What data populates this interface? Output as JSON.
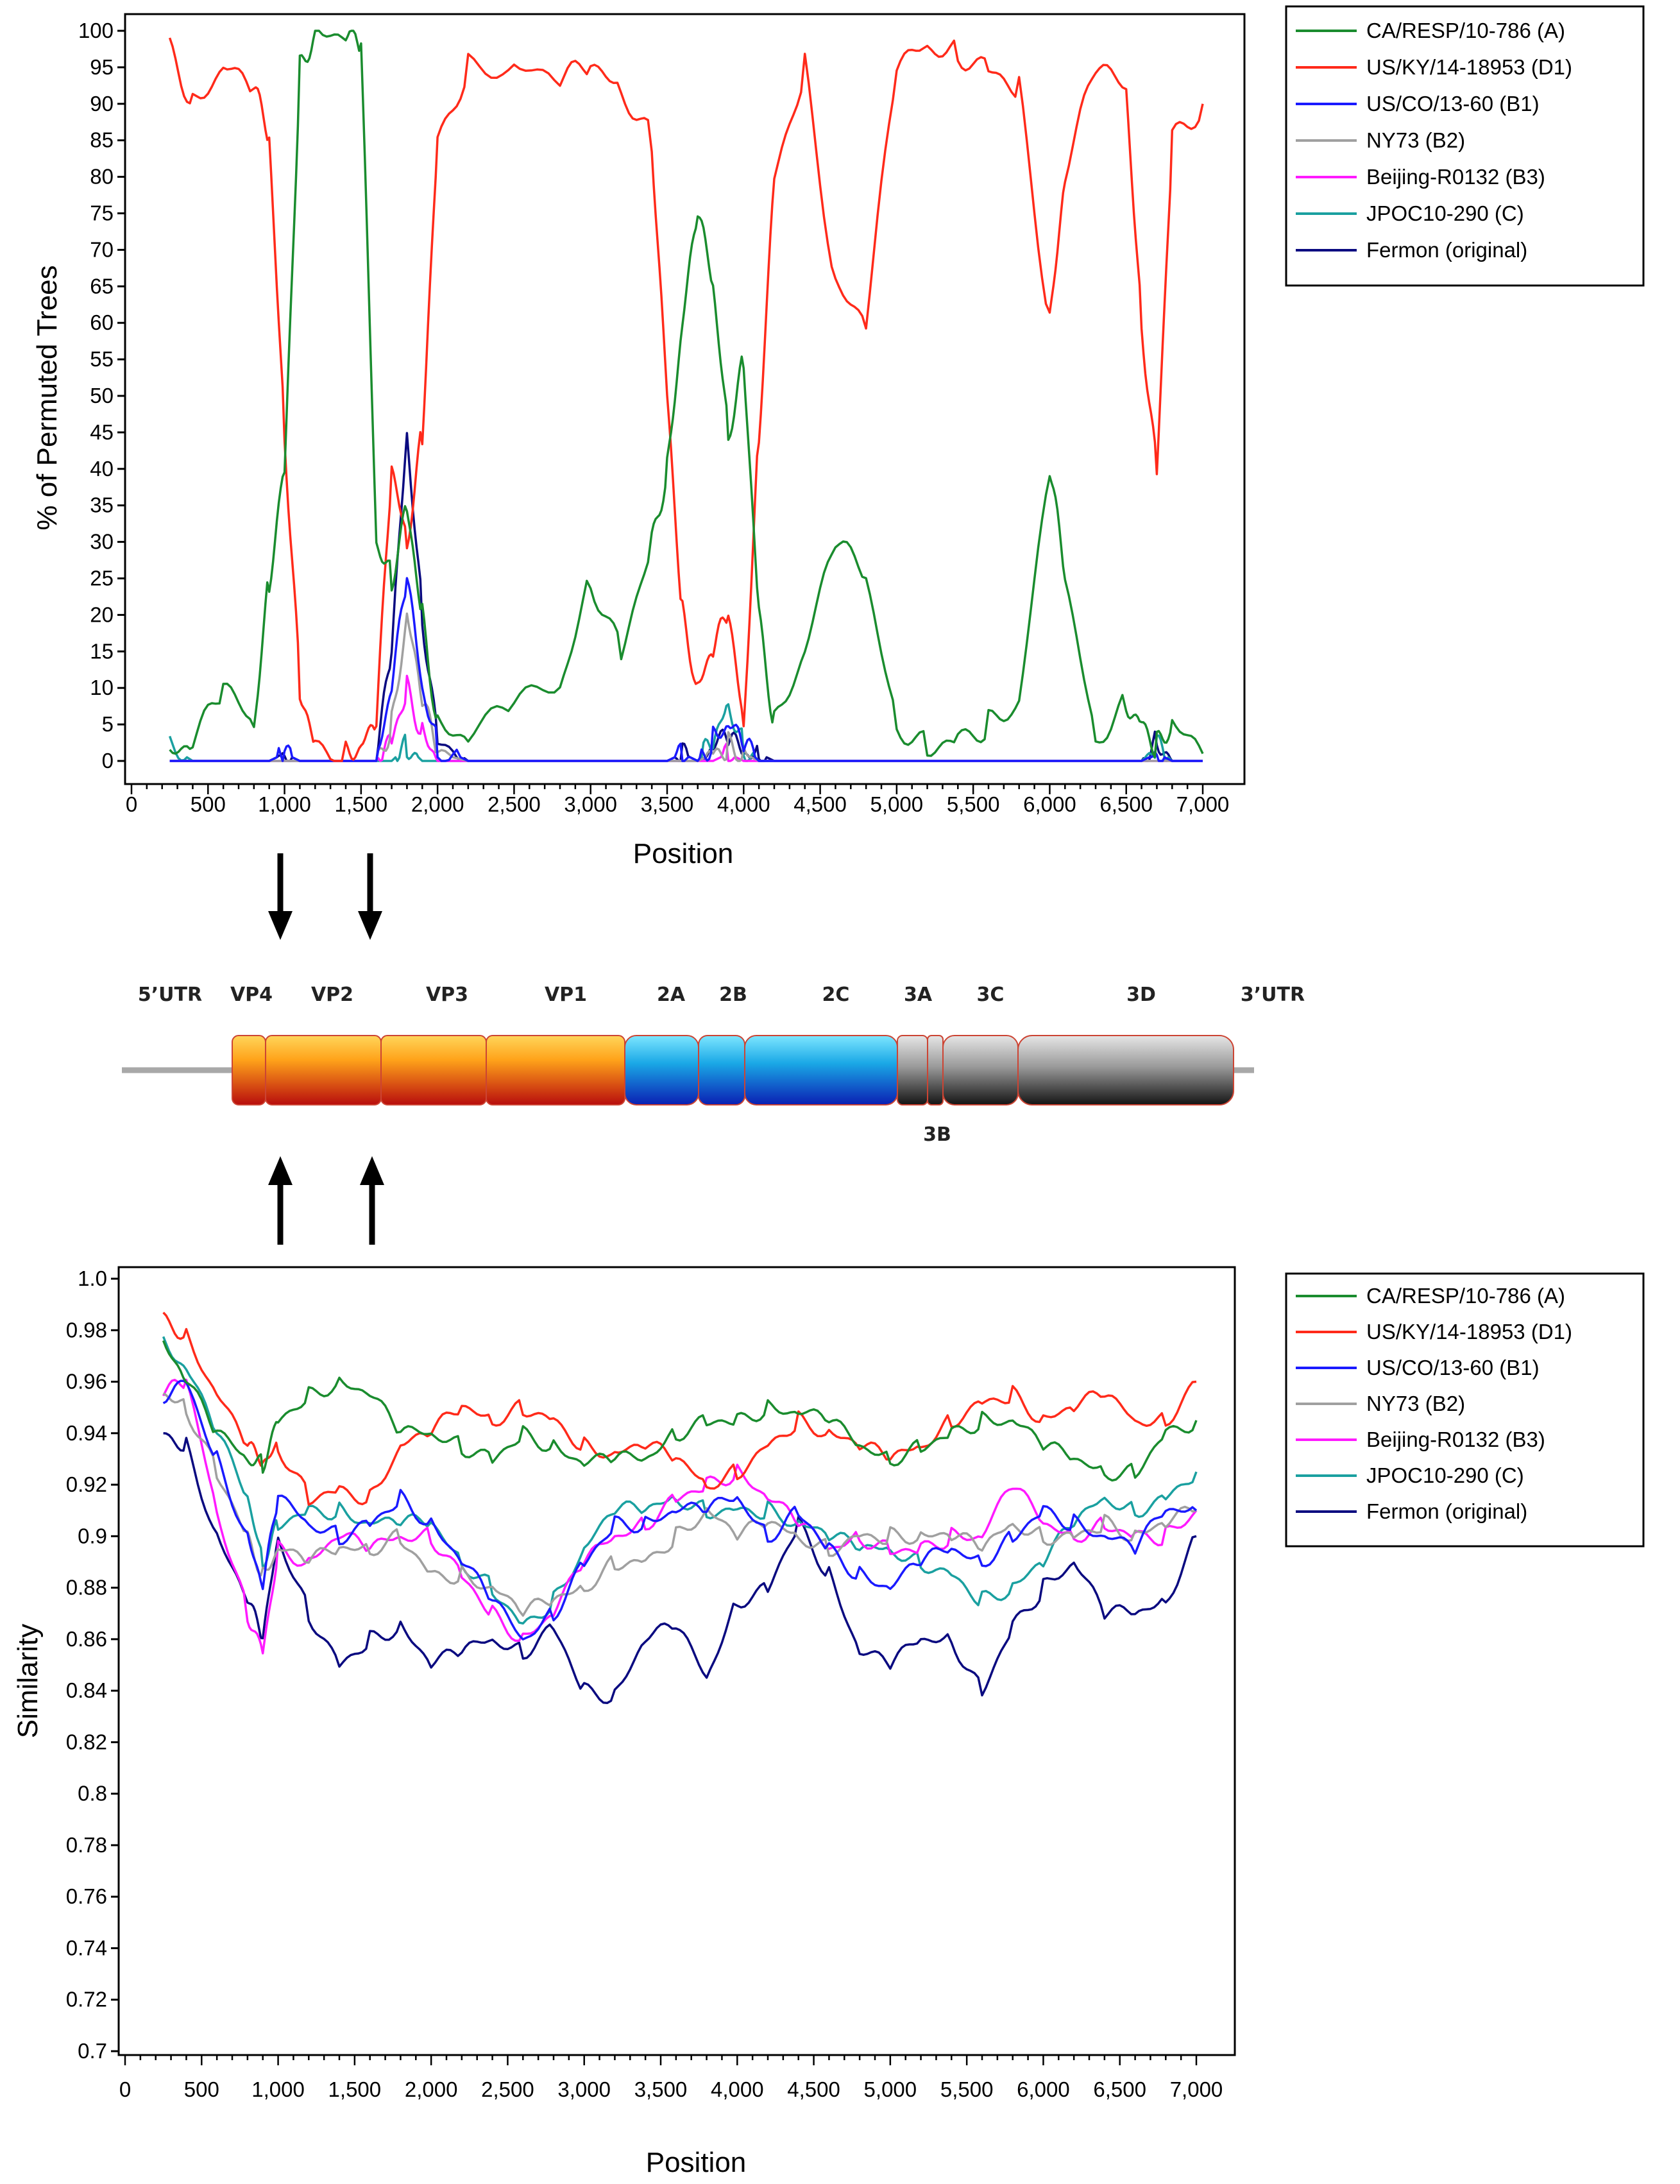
{
  "chart_data": [
    {
      "type": "line",
      "title": "",
      "xlabel": "Position",
      "ylabel": "% of Permuted Trees",
      "xlim": [
        0,
        7000
      ],
      "ylim": [
        0,
        100
      ],
      "x_ticks": [
        "0",
        "500",
        "1,000",
        "1,500",
        "2,000",
        "2,500",
        "3,000",
        "3,500",
        "4,000",
        "4,500",
        "5,000",
        "5,500",
        "6,000",
        "6,500",
        "7,000"
      ],
      "y_ticks": [
        "0",
        "5",
        "10",
        "15",
        "20",
        "25",
        "30",
        "35",
        "40",
        "45",
        "50",
        "55",
        "60",
        "65",
        "70",
        "75",
        "80",
        "85",
        "90",
        "95",
        "100"
      ],
      "x": [
        250,
        400,
        600,
        800,
        900,
        1000,
        1100,
        1200,
        1400,
        1500,
        1600,
        1700,
        1800,
        1900,
        2000,
        2200,
        2500,
        2800,
        3000,
        3200,
        3400,
        3500,
        3600,
        3700,
        3800,
        3900,
        4000,
        4100,
        4200,
        4400,
        4600,
        4800,
        5000,
        5200,
        5400,
        5600,
        5800,
        6000,
        6100,
        6300,
        6500,
        6600,
        6700,
        6800,
        7000
      ],
      "series": [
        {
          "name": "CA/RESP/10-786 (A)",
          "color": "#1a8c2e",
          "values": [
            1,
            2,
            10,
            5,
            25,
            40,
            95,
            100,
            99,
            98,
            30,
            25,
            35,
            20,
            5,
            3,
            8,
            10,
            25,
            15,
            30,
            40,
            60,
            75,
            65,
            45,
            55,
            20,
            5,
            15,
            30,
            25,
            5,
            2,
            3,
            5,
            8,
            40,
            25,
            3,
            8,
            5,
            2,
            5,
            1
          ]
        },
        {
          "name": "US/KY/14-18953 (D1)",
          "color": "#ff2a1a",
          "values": [
            98,
            90,
            95,
            92,
            85,
            45,
            10,
            2,
            1,
            2,
            5,
            40,
            30,
            45,
            85,
            95,
            95,
            93,
            95,
            92,
            85,
            50,
            20,
            10,
            15,
            20,
            5,
            45,
            80,
            95,
            65,
            60,
            95,
            98,
            97,
            95,
            92,
            60,
            80,
            95,
            92,
            60,
            40,
            85,
            90
          ]
        },
        {
          "name": "US/CO/13-60 (B1)",
          "color": "#1a1aff",
          "values": [
            0,
            0,
            0,
            0,
            0,
            1,
            0,
            0,
            0,
            0,
            0,
            10,
            25,
            10,
            2,
            0,
            0,
            0,
            0,
            0,
            0,
            0,
            1,
            0,
            3,
            5,
            2,
            0,
            0,
            0,
            0,
            0,
            0,
            0,
            0,
            0,
            0,
            0,
            0,
            0,
            0,
            0,
            1,
            0,
            0
          ]
        },
        {
          "name": "NY73 (B2)",
          "color": "#a0a0a0",
          "values": [
            0,
            0,
            0,
            0,
            0,
            0,
            0,
            0,
            0,
            0,
            0,
            5,
            20,
            8,
            1,
            0,
            0,
            0,
            0,
            0,
            0,
            0,
            0,
            0,
            1,
            2,
            1,
            0,
            0,
            0,
            0,
            0,
            0,
            0,
            0,
            0,
            0,
            0,
            0,
            0,
            0,
            0,
            0,
            0,
            0
          ]
        },
        {
          "name": "Beijing-R0132 (B3)",
          "color": "#ff1aff",
          "values": [
            0,
            0,
            0,
            0,
            0,
            0,
            0,
            0,
            0,
            0,
            0,
            3,
            10,
            4,
            0,
            0,
            0,
            0,
            0,
            0,
            0,
            0,
            0,
            0,
            0,
            1,
            0,
            0,
            0,
            0,
            0,
            0,
            0,
            0,
            0,
            0,
            0,
            0,
            0,
            0,
            0,
            0,
            0,
            0,
            0
          ]
        },
        {
          "name": "JPOC10-290 (C)",
          "color": "#1aa0a0",
          "values": [
            2,
            0,
            0,
            0,
            0,
            0,
            0,
            0,
            0,
            0,
            0,
            0,
            2,
            0,
            0,
            0,
            0,
            0,
            0,
            0,
            0,
            0,
            0,
            0,
            2,
            8,
            2,
            0,
            0,
            0,
            0,
            0,
            0,
            0,
            0,
            0,
            0,
            0,
            0,
            0,
            0,
            0,
            2,
            0,
            0
          ]
        },
        {
          "name": "Fermon (original)",
          "color": "#0a0a80",
          "values": [
            0,
            0,
            0,
            0,
            0,
            1,
            0,
            0,
            0,
            0,
            0,
            15,
            45,
            20,
            3,
            0,
            0,
            0,
            0,
            0,
            0,
            0,
            1,
            0,
            2,
            3,
            1,
            1,
            0,
            0,
            0,
            0,
            0,
            0,
            0,
            0,
            0,
            0,
            0,
            0,
            0,
            0,
            3,
            0,
            0
          ]
        }
      ]
    },
    {
      "type": "line",
      "title": "",
      "xlabel": "Position",
      "ylabel": "Similarity",
      "xlim": [
        0,
        7000
      ],
      "ylim": [
        0.7,
        1.0
      ],
      "x_ticks": [
        "0",
        "500",
        "1,000",
        "1,500",
        "2,000",
        "2,500",
        "3,000",
        "3,500",
        "4,000",
        "4,500",
        "5,000",
        "5,500",
        "6,000",
        "6,500",
        "7,000"
      ],
      "y_ticks": [
        "0.7",
        "0.72",
        "0.74",
        "0.76",
        "0.78",
        "0.8",
        "0.82",
        "0.84",
        "0.86",
        "0.88",
        "0.9",
        "0.92",
        "0.94",
        "0.96",
        "0.98",
        "1.0"
      ],
      "x": [
        250,
        400,
        600,
        800,
        900,
        1000,
        1200,
        1400,
        1600,
        1800,
        2000,
        2200,
        2400,
        2600,
        2800,
        3000,
        3200,
        3400,
        3600,
        3800,
        4000,
        4200,
        4400,
        4600,
        4800,
        5000,
        5200,
        5400,
        5600,
        5800,
        6000,
        6200,
        6400,
        6600,
        6800,
        7000
      ],
      "series": [
        {
          "name": "CA/RESP/10-786 (A)",
          "color": "#1a8c2e",
          "values": [
            0.975,
            0.96,
            0.94,
            0.93,
            0.928,
            0.945,
            0.955,
            0.96,
            0.955,
            0.94,
            0.94,
            0.935,
            0.93,
            0.94,
            0.935,
            0.928,
            0.93,
            0.93,
            0.94,
            0.945,
            0.945,
            0.95,
            0.948,
            0.945,
            0.935,
            0.93,
            0.935,
            0.94,
            0.945,
            0.945,
            0.935,
            0.93,
            0.925,
            0.925,
            0.94,
            0.945
          ]
        },
        {
          "name": "US/KY/14-18953 (D1)",
          "color": "#ff2a1a",
          "values": [
            0.985,
            0.978,
            0.955,
            0.935,
            0.928,
            0.935,
            0.915,
            0.918,
            0.915,
            0.935,
            0.94,
            0.95,
            0.945,
            0.95,
            0.945,
            0.935,
            0.932,
            0.935,
            0.93,
            0.92,
            0.925,
            0.935,
            0.945,
            0.94,
            0.935,
            0.93,
            0.935,
            0.945,
            0.952,
            0.955,
            0.945,
            0.95,
            0.955,
            0.945,
            0.945,
            0.96
          ]
        },
        {
          "name": "US/CO/13-60 (B1)",
          "color": "#1a1aff",
          "values": [
            0.955,
            0.96,
            0.93,
            0.9,
            0.88,
            0.915,
            0.905,
            0.9,
            0.905,
            0.915,
            0.905,
            0.89,
            0.875,
            0.86,
            0.87,
            0.89,
            0.905,
            0.905,
            0.91,
            0.91,
            0.915,
            0.9,
            0.91,
            0.895,
            0.885,
            0.88,
            0.89,
            0.895,
            0.89,
            0.9,
            0.91,
            0.905,
            0.9,
            0.895,
            0.91,
            0.91
          ]
        },
        {
          "name": "NY73 (B2)",
          "color": "#a0a0a0",
          "values": [
            0.955,
            0.95,
            0.925,
            0.9,
            0.885,
            0.895,
            0.89,
            0.895,
            0.895,
            0.9,
            0.885,
            0.885,
            0.88,
            0.87,
            0.875,
            0.88,
            0.89,
            0.89,
            0.9,
            0.91,
            0.9,
            0.905,
            0.9,
            0.895,
            0.9,
            0.9,
            0.9,
            0.9,
            0.895,
            0.905,
            0.9,
            0.9,
            0.905,
            0.9,
            0.905,
            0.91
          ]
        },
        {
          "name": "Beijing-R0132 (B3)",
          "color": "#ff1aff",
          "values": [
            0.955,
            0.96,
            0.91,
            0.87,
            0.855,
            0.895,
            0.89,
            0.9,
            0.895,
            0.9,
            0.9,
            0.885,
            0.87,
            0.86,
            0.87,
            0.89,
            0.9,
            0.905,
            0.915,
            0.92,
            0.925,
            0.915,
            0.905,
            0.895,
            0.9,
            0.895,
            0.895,
            0.9,
            0.9,
            0.92,
            0.905,
            0.9,
            0.905,
            0.9,
            0.9,
            0.91
          ]
        },
        {
          "name": "JPOC10-290 (C)",
          "color": "#1aa0a0",
          "values": [
            0.975,
            0.965,
            0.94,
            0.915,
            0.89,
            0.905,
            0.91,
            0.91,
            0.905,
            0.905,
            0.905,
            0.89,
            0.88,
            0.865,
            0.875,
            0.895,
            0.91,
            0.91,
            0.915,
            0.91,
            0.91,
            0.91,
            0.905,
            0.9,
            0.895,
            0.895,
            0.89,
            0.885,
            0.875,
            0.88,
            0.89,
            0.905,
            0.915,
            0.91,
            0.915,
            0.925
          ]
        },
        {
          "name": "Fermon (original)",
          "color": "#0a0a80",
          "values": [
            0.94,
            0.935,
            0.9,
            0.875,
            0.86,
            0.9,
            0.87,
            0.85,
            0.86,
            0.865,
            0.85,
            0.855,
            0.86,
            0.855,
            0.865,
            0.84,
            0.838,
            0.86,
            0.865,
            0.845,
            0.875,
            0.88,
            0.905,
            0.885,
            0.855,
            0.85,
            0.86,
            0.86,
            0.84,
            0.865,
            0.88,
            0.89,
            0.87,
            0.87,
            0.875,
            0.9
          ]
        }
      ]
    }
  ],
  "genome_map": {
    "segments": [
      {
        "label": "5’UTR"
      },
      {
        "label": "VP4"
      },
      {
        "label": "VP2"
      },
      {
        "label": "VP3"
      },
      {
        "label": "VP1"
      },
      {
        "label": "2A"
      },
      {
        "label": "2B"
      },
      {
        "label": "2C"
      },
      {
        "label": "3A"
      },
      {
        "label": "3C"
      },
      {
        "label": "3D"
      },
      {
        "label": "3’UTR"
      }
    ],
    "sub_label": "3B"
  }
}
